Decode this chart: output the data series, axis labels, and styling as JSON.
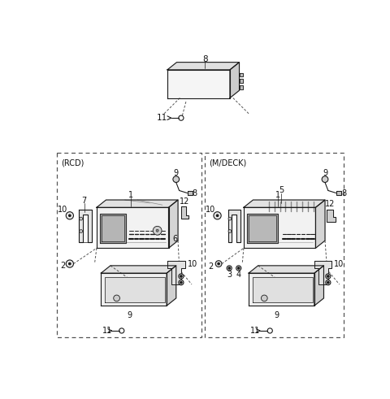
{
  "bg_color": "#ffffff",
  "lc": "#1a1a1a",
  "dc": "#555555",
  "fig_width": 4.8,
  "fig_height": 4.91,
  "dpi": 100
}
